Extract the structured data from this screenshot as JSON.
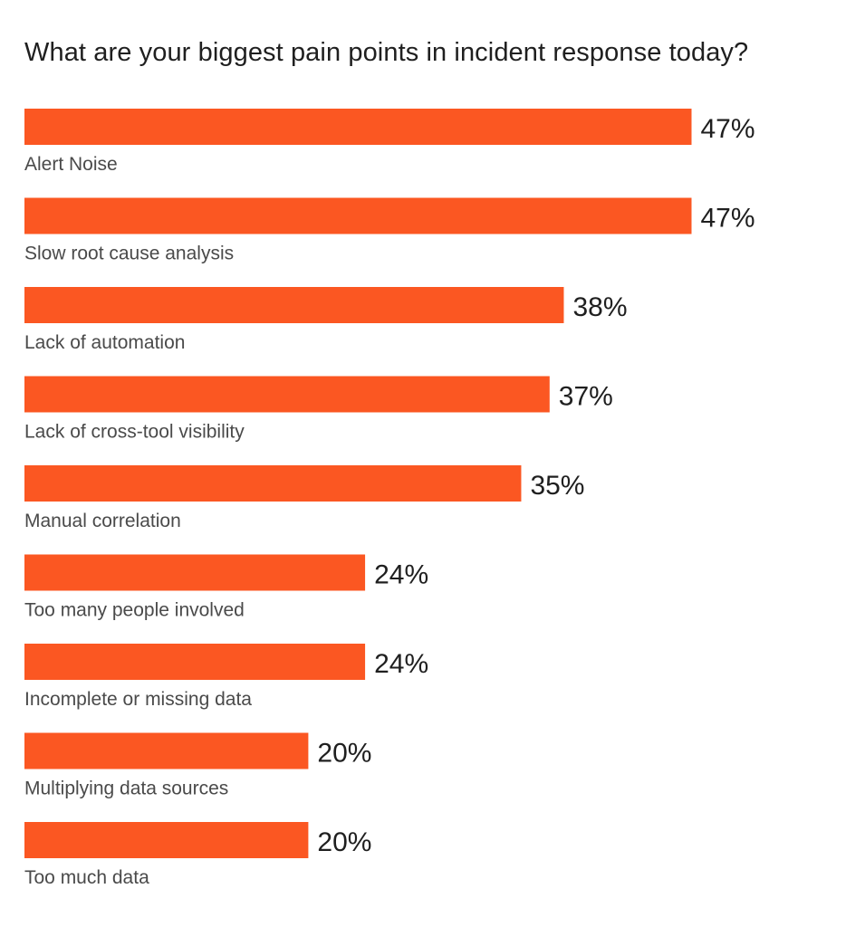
{
  "chart_data": {
    "type": "bar",
    "orientation": "horizontal",
    "title": "What are your biggest pain points in incident response today?",
    "categories": [
      "Alert Noise",
      "Slow root cause analysis",
      "Lack of automation",
      "Lack of cross-tool visibility",
      "Manual correlation",
      "Too many people involved",
      "Incomplete or missing data",
      "Multiplying data sources",
      "Too much data"
    ],
    "values": [
      47,
      47,
      38,
      37,
      35,
      24,
      24,
      20,
      20
    ],
    "value_labels": [
      "47%",
      "47%",
      "38%",
      "37%",
      "35%",
      "24%",
      "24%",
      "20%",
      "20%"
    ],
    "unit": "%",
    "bar_color": "#FB5722",
    "grid": false,
    "legend": "none",
    "xlabel": "",
    "ylabel": ""
  }
}
